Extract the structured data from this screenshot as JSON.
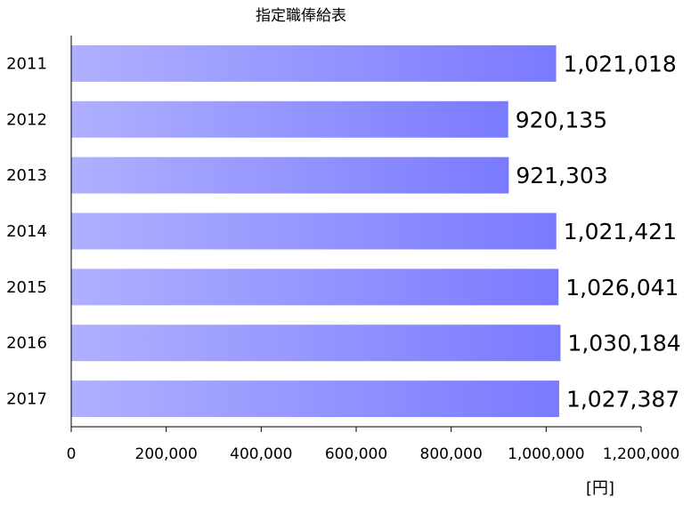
{
  "chart_data": {
    "type": "bar",
    "orientation": "horizontal",
    "title": "指定職俸給表",
    "categories": [
      "2011",
      "2012",
      "2013",
      "2014",
      "2015",
      "2016",
      "2017"
    ],
    "values": [
      1021018,
      920135,
      921303,
      1021421,
      1026041,
      1030184,
      1027387
    ],
    "value_labels": [
      "1,021,018",
      "920,135",
      "921,303",
      "1,021,421",
      "1,026,041",
      "1,030,184",
      "1,027,387"
    ],
    "xlim": [
      0,
      1200000
    ],
    "x_ticks": [
      0,
      200000,
      400000,
      600000,
      800000,
      1000000,
      1200000
    ],
    "x_tick_labels": [
      "0",
      "200,000",
      "400,000",
      "600,000",
      "800,000",
      "1,000,000",
      "1,200,000"
    ],
    "x_unit": "[円]",
    "grid": false,
    "legend": "none",
    "bar_gradient": [
      "#b0b0ff",
      "#7a7aff"
    ]
  }
}
